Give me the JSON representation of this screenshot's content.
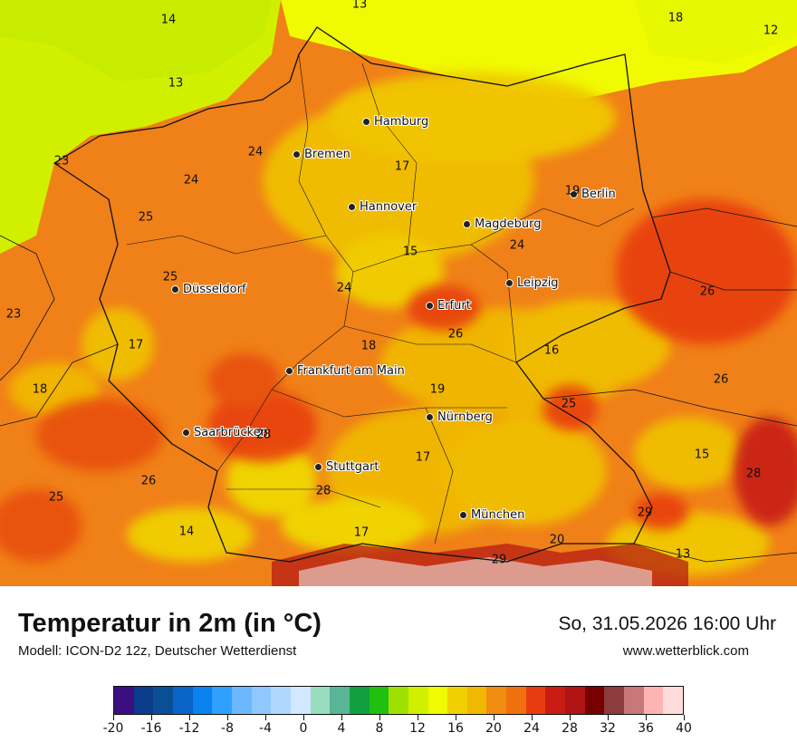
{
  "map": {
    "cities": [
      {
        "name": "Hamburg",
        "id": "hamburg"
      },
      {
        "name": "Bremen",
        "id": "bremen"
      },
      {
        "name": "Berlin",
        "id": "berlin"
      },
      {
        "name": "Hannover",
        "id": "hannover"
      },
      {
        "name": "Magdeburg",
        "id": "magdeburg"
      },
      {
        "name": "Leipzig",
        "id": "leipzig"
      },
      {
        "name": "Düsseldorf",
        "id": "duesseldorf"
      },
      {
        "name": "Erfurt",
        "id": "erfurt"
      },
      {
        "name": "Frankfurt am Main",
        "id": "frankfurt"
      },
      {
        "name": "Nürnberg",
        "id": "nuernberg"
      },
      {
        "name": "Saarbrücken",
        "id": "saarbruecken"
      },
      {
        "name": "Stuttgart",
        "id": "stuttgart"
      },
      {
        "name": "München",
        "id": "muenchen"
      }
    ],
    "temperature_values": [
      "14",
      "13",
      "13",
      "18",
      "12",
      "23",
      "24",
      "24",
      "17",
      "19",
      "25",
      "24",
      "15",
      "25",
      "24",
      "26",
      "23",
      "17",
      "18",
      "26",
      "16",
      "18",
      "19",
      "26",
      "25",
      "28",
      "17",
      "15",
      "26",
      "28",
      "25",
      "28",
      "14",
      "17",
      "29",
      "20",
      "13",
      "29"
    ]
  },
  "footer": {
    "title": "Temperatur in 2m (in °C)",
    "model": "Modell: ICON-D2 12z, Deutscher Wetterdienst",
    "datetime": "So, 31.05.2026 16:00 Uhr",
    "website": "www.wetterblick.com"
  },
  "legend": {
    "unit": "°C",
    "tick_labels": [
      "-20",
      "-16",
      "-12",
      "-8",
      "-4",
      "0",
      "4",
      "8",
      "12",
      "16",
      "20",
      "24",
      "28",
      "32",
      "36",
      "40"
    ],
    "colors": [
      "#3b0f80",
      "#0b3c8c",
      "#0a4f96",
      "#0a64c8",
      "#0a82f0",
      "#2fa0ff",
      "#6cb8ff",
      "#8ec8ff",
      "#b0d8ff",
      "#d2e8ff",
      "#9adcc0",
      "#5ab496",
      "#10a040",
      "#20c010",
      "#a0e000",
      "#d0f000",
      "#f0fa00",
      "#f0d000",
      "#f0b800",
      "#f08c10",
      "#f07010",
      "#e83c10",
      "#c81c14",
      "#b01414",
      "#780000",
      "#8c3c3c",
      "#c87878",
      "#ffb4b4",
      "#ffdcdc"
    ]
  }
}
